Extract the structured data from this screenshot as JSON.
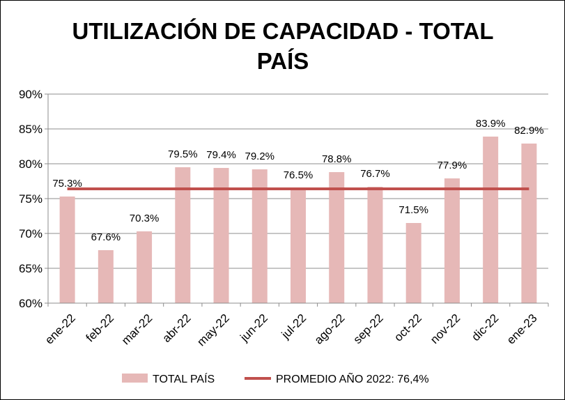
{
  "chart_data": {
    "type": "bar",
    "title_lines": [
      "UTILIZACIÓN DE CAPACIDAD - TOTAL",
      "PAÍS"
    ],
    "categories": [
      "ene-22",
      "feb-22",
      "mar-22",
      "abr-22",
      "may-22",
      "jun-22",
      "jul-22",
      "ago-22",
      "sep-22",
      "oct-22",
      "nov-22",
      "dic-22",
      "ene-23"
    ],
    "series": [
      {
        "name": "TOTAL PAÍS",
        "type": "bar",
        "color": "#e6b8b7",
        "values": [
          75.3,
          67.6,
          70.3,
          79.5,
          79.4,
          79.2,
          76.5,
          78.8,
          76.7,
          71.5,
          77.9,
          83.9,
          82.9
        ],
        "labels": [
          "75.3%",
          "67.6%",
          "70.3%",
          "79.5%",
          "79.4%",
          "79.2%",
          "76.5%",
          "78.8%",
          "76.7%",
          "71.5%",
          "77.9%",
          "83.9%",
          "82.9%"
        ]
      },
      {
        "name": "PROMEDIO AÑO 2022: 76,4%",
        "type": "line",
        "color": "#c0504d",
        "value": 76.4
      }
    ],
    "ylim": [
      60,
      90
    ],
    "yticks": [
      60,
      65,
      70,
      75,
      80,
      85,
      90
    ],
    "ytick_labels": [
      "60%",
      "65%",
      "70%",
      "75%",
      "80%",
      "85%",
      "90%"
    ],
    "grid": true,
    "legend_position": "bottom",
    "xlabel": "",
    "ylabel": ""
  }
}
